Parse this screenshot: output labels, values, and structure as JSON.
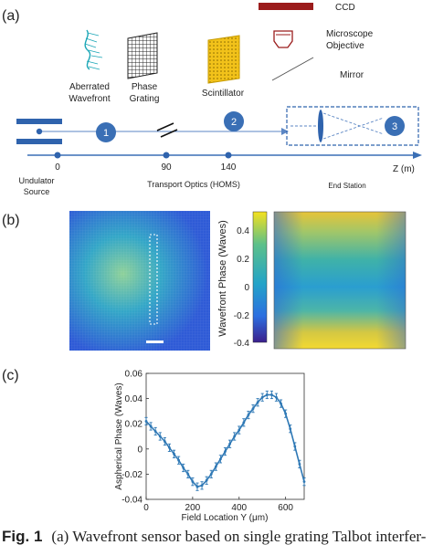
{
  "panel_a": {
    "label": "(a)",
    "ccd_label": "CCD",
    "objective_label_line1": "Microscope",
    "objective_label_line2": "Objective",
    "mirror_label": "Mirror",
    "wavefront_label_line1": "Aberrated",
    "wavefront_label_line2": "Wavefront",
    "grating_label_line1": "Phase",
    "grating_label_line2": "Grating",
    "scintillator_label": "Scintillator",
    "stage_1": "1",
    "stage_2": "2",
    "stage_3": "3",
    "tick_0": "0",
    "tick_90": "90",
    "tick_140": "140",
    "z_axis_label": "Z (m)",
    "source_label_line1": "Undulator",
    "source_label_line2": "Source",
    "transport_label": "Transport Optics (HOMS)",
    "end_station_label": "End Station"
  },
  "panel_b": {
    "label": "(b)",
    "colorbar_label": "Wavefront Phase (Waves)",
    "colorbar_ticks": [
      "0.4",
      "0.2",
      "0",
      "-0.2",
      "-0.4"
    ]
  },
  "panel_c": {
    "label": "(c)"
  },
  "chart_data": {
    "type": "line",
    "title": "",
    "xlabel": "Field Location Y (μm)",
    "ylabel": "Aspherical Phase (Waves)",
    "xlim": [
      0,
      680
    ],
    "ylim": [
      -0.04,
      0.06
    ],
    "x_ticks": [
      0,
      200,
      400,
      600
    ],
    "y_ticks": [
      -0.04,
      -0.02,
      0,
      0.02,
      0.04,
      0.06
    ],
    "series": [
      {
        "color": "#2e78b5",
        "x": [
          0,
          20,
          40,
          60,
          80,
          100,
          120,
          140,
          160,
          180,
          200,
          220,
          240,
          260,
          280,
          300,
          320,
          340,
          360,
          380,
          400,
          420,
          440,
          460,
          480,
          500,
          520,
          540,
          560,
          580,
          600,
          620,
          640,
          660,
          680
        ],
        "y": [
          0.022,
          0.018,
          0.014,
          0.01,
          0.006,
          0.001,
          -0.004,
          -0.009,
          -0.015,
          -0.02,
          -0.026,
          -0.03,
          -0.029,
          -0.025,
          -0.02,
          -0.014,
          -0.008,
          -0.002,
          0.004,
          0.01,
          0.015,
          0.021,
          0.027,
          0.032,
          0.037,
          0.041,
          0.043,
          0.043,
          0.041,
          0.036,
          0.028,
          0.016,
          0.002,
          -0.012,
          -0.026
        ],
        "err": [
          0.003,
          0.003,
          0.003,
          0.003,
          0.003,
          0.003,
          0.003,
          0.003,
          0.003,
          0.003,
          0.003,
          0.003,
          0.003,
          0.003,
          0.003,
          0.003,
          0.003,
          0.003,
          0.003,
          0.003,
          0.003,
          0.003,
          0.003,
          0.003,
          0.003,
          0.003,
          0.003,
          0.003,
          0.003,
          0.003,
          0.003,
          0.003,
          0.003,
          0.003,
          0.003
        ]
      }
    ]
  },
  "caption": {
    "fig_label": "Fig. 1",
    "text": "(a) Wavefront sensor based on single grating Talbot interfer-"
  },
  "colors": {
    "beam_blue": "#3a6fb5",
    "ccd_red": "#9b1c1c",
    "scintillator_yellow": "#f2c21a",
    "plot_blue": "#2e78b5"
  }
}
